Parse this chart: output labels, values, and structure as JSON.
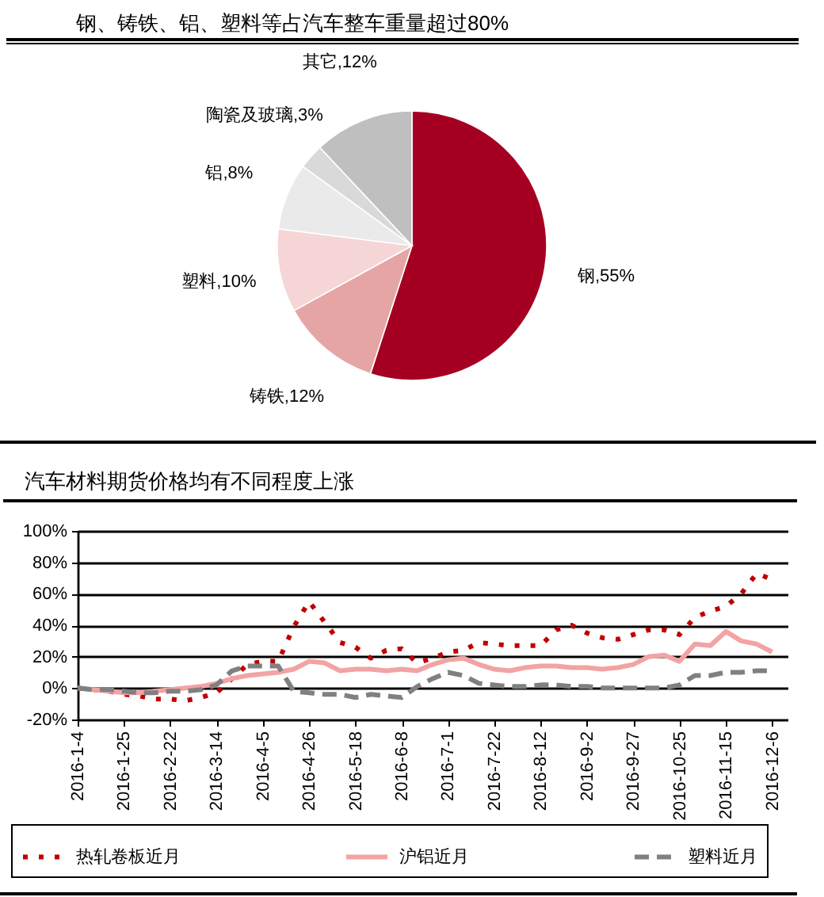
{
  "chart_data": [
    {
      "type": "pie",
      "title": "钢、铸铁、铝、塑料等占汽车整车重量超过80%",
      "categories": [
        "钢",
        "铸铁",
        "塑料",
        "铝",
        "陶瓷及玻璃",
        "其它"
      ],
      "values": [
        55,
        12,
        10,
        8,
        3,
        12
      ],
      "colors": [
        "#a50021",
        "#e6a5a5",
        "#f5d5d5",
        "#eaeaea",
        "#d9d9d9",
        "#bfbfbf"
      ],
      "value_labels": [
        "55%",
        "12%",
        "10%",
        "8%",
        "3%",
        "12%"
      ]
    },
    {
      "type": "line",
      "title": "汽车材料期货价格均有不同程度上涨",
      "categories": [
        "2016-1-4",
        null,
        null,
        "2016-1-25",
        null,
        null,
        "2016-2-22",
        null,
        null,
        "2016-3-14",
        null,
        null,
        "2016-4-5",
        null,
        null,
        "2016-4-26",
        null,
        null,
        "2016-5-18",
        null,
        null,
        "2016-6-8",
        null,
        null,
        "2016-7-1",
        null,
        null,
        "2016-7-22",
        null,
        null,
        "2016-8-12",
        null,
        null,
        "2016-9-2",
        null,
        null,
        "2016-9-27",
        null,
        null,
        "2016-10-25",
        null,
        null,
        "2016-11-15",
        null,
        null,
        "2016-12-6"
      ],
      "series": [
        {
          "name": "热轧卷板近月",
          "color": "#c00000",
          "line_style": "dotted",
          "values": [
            0,
            -1,
            -2,
            -4,
            -5,
            -7,
            -7,
            -8,
            -6,
            -3,
            6,
            15,
            17,
            17,
            39,
            55,
            42,
            29,
            26,
            19,
            24,
            25,
            16,
            19,
            23,
            24,
            29,
            28,
            27,
            27,
            27,
            37,
            40,
            35,
            32,
            31,
            34,
            37,
            37,
            34,
            45,
            49,
            52,
            60,
            73,
            69
          ]
        },
        {
          "name": "沪铝近月",
          "color": "#f2a3a3",
          "line_style": "solid",
          "values": [
            0,
            -1,
            -2,
            -3,
            -3,
            -2,
            -1,
            0,
            1,
            3,
            6,
            8,
            9,
            10,
            12,
            17,
            16,
            11,
            12,
            12,
            11,
            12,
            11,
            15,
            18,
            19,
            15,
            12,
            11,
            13,
            14,
            14,
            13,
            13,
            12,
            13,
            15,
            20,
            21,
            17,
            28,
            27,
            36,
            30,
            28,
            23
          ]
        },
        {
          "name": "塑料近月",
          "color": "#808080",
          "line_style": "dashed",
          "values": [
            0,
            -1,
            -1,
            -2,
            -3,
            -3,
            -2,
            -2,
            -1,
            2,
            11,
            14,
            14,
            14,
            -2,
            -3,
            -4,
            -4,
            -6,
            -4,
            -5,
            -6,
            1,
            6,
            10,
            8,
            3,
            2,
            1,
            1,
            2,
            2,
            1,
            1,
            0,
            0,
            0,
            0,
            0,
            2,
            8,
            8,
            10,
            10,
            11,
            11
          ]
        }
      ],
      "ylim": [
        -20,
        100
      ],
      "yticks": [
        {
          "value": -20,
          "label": "-20%"
        },
        {
          "value": 0,
          "label": "0%"
        },
        {
          "value": 20,
          "label": "20%"
        },
        {
          "value": 40,
          "label": "40%"
        },
        {
          "value": 60,
          "label": "60%"
        },
        {
          "value": 80,
          "label": "80%"
        },
        {
          "value": 100,
          "label": "100%"
        }
      ],
      "grid": "y",
      "legend": "bottom"
    }
  ]
}
